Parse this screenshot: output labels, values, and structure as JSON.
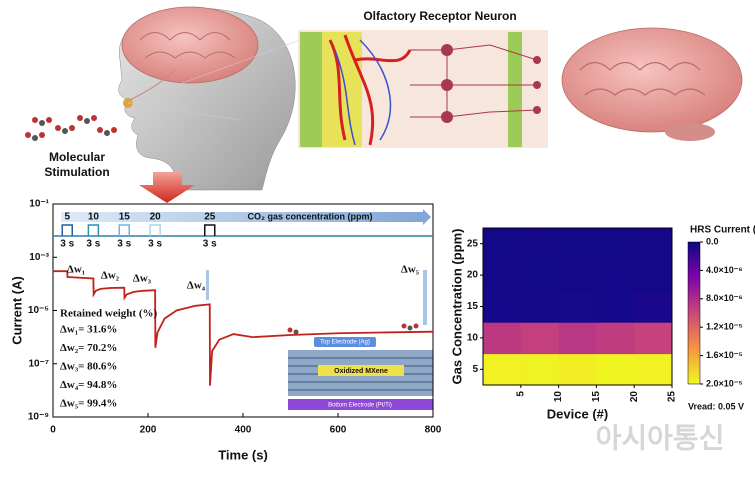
{
  "illustration": {
    "receptor_title": "Olfactory Receptor Neuron",
    "stimulation": [
      "Molecular",
      "Stimulation"
    ],
    "device": {
      "top": "Top Electrode (Ag)",
      "middle": "Oxidized MXene",
      "bottom": "Bottom Electrode (Pt/Ti)"
    },
    "watermark": "아시아통신"
  },
  "chart_data": [
    {
      "type": "line",
      "xlabel": "Time (s)",
      "ylabel": "Current (A)",
      "log_y": true,
      "xlim": [
        0,
        800
      ],
      "xticks": [
        0,
        200,
        400,
        600,
        800
      ],
      "ylim": [
        1e-09,
        0.1
      ],
      "yticks": [
        {
          "value": 1e-09,
          "label": "10⁻⁹"
        },
        {
          "value": 1e-07,
          "label": "10⁻⁷"
        },
        {
          "value": 1e-05,
          "label": "10⁻⁵"
        },
        {
          "value": 0.001,
          "label": "10⁻³"
        },
        {
          "value": 0.1,
          "label": "10⁻¹"
        }
      ],
      "series": [
        {
          "color": "#c0231b",
          "x": [
            0,
            30,
            30.5,
            85,
            85.5,
            90,
            100,
            120,
            150,
            150.5,
            155,
            170,
            190,
            215,
            215.5,
            220,
            235,
            260,
            300,
            330,
            330.5,
            335,
            350,
            380,
            420,
            500,
            600,
            700,
            800
          ],
          "values": [
            0.0003,
            0.0003,
            0.00018,
            0.00016,
            4e-05,
            5.5e-05,
            6.5e-05,
            7e-05,
            7.2e-05,
            3e-05,
            4e-05,
            5e-05,
            5.5e-05,
            5.8e-05,
            4e-07,
            1.5e-06,
            5e-06,
            1e-05,
            1.5e-05,
            1.7e-05,
            1.5e-08,
            3e-07,
            8e-07,
            1.3e-06,
            1e-06,
            1.2e-06,
            1.4e-06,
            1.5e-06,
            1.6e-06
          ]
        }
      ],
      "pulses": {
        "label": "CO₂ gas concentration (ppm)",
        "concentrations": [
          5,
          10,
          15,
          20,
          25
        ],
        "x": [
          30,
          85,
          150,
          215,
          330
        ],
        "duration_labels": [
          "3 s",
          "3 s",
          "3 s",
          "3 s",
          "3 s"
        ],
        "colors": [
          "#1f5fa8",
          "#2f8fb0",
          "#6bb6e0",
          "#a9d3ee",
          "#111111"
        ]
      },
      "annotations": {
        "drops": [
          "Δw₁",
          "Δw₂",
          "Δw₃",
          "Δw₄",
          "Δw₅"
        ],
        "retained_title": "Retained weight (%)",
        "retained": [
          "Δw₁= 31.6%",
          "Δw₂= 70.2%",
          "Δw₃= 80.6%",
          "Δw₄= 94.8%",
          "Δw₅= 99.4%"
        ]
      }
    },
    {
      "type": "heatmap",
      "xlabel": "Device (#)",
      "ylabel": "Gas Concentration (ppm)",
      "xlim": [
        0,
        25
      ],
      "xticks": [
        5,
        10,
        15,
        20,
        25
      ],
      "ylim": [
        2.5,
        27.5
      ],
      "yticks": [
        5,
        10,
        15,
        20,
        25
      ],
      "rows": [
        5,
        10,
        15,
        20,
        25
      ],
      "values": [
        [
          1.96e-05,
          1.97e-05,
          1.95e-05,
          1.98e-05,
          1.96e-05
        ],
        [
          9e-06,
          9.4e-06,
          8.8e-06,
          9.2e-06,
          9.6e-06
        ],
        [
          4e-07,
          3e-07,
          5e-07,
          4e-07,
          6e-07
        ],
        [
          3e-07,
          2e-07,
          3e-07,
          4e-07,
          3e-07
        ],
        [
          2e-07,
          3e-07,
          2e-07,
          2e-07,
          3e-07
        ]
      ],
      "colormap": "plasma",
      "colorbar": {
        "title": "HRS Current (A",
        "lim": [
          0,
          2e-05
        ],
        "ticks": [
          {
            "value": 0,
            "label": "0.0"
          },
          {
            "value": 4e-06,
            "label": "4.0×10⁻⁶"
          },
          {
            "value": 8e-06,
            "label": "8.0×10⁻⁶"
          },
          {
            "value": 1.2e-05,
            "label": "1.2×10⁻⁵"
          },
          {
            "value": 1.6e-05,
            "label": "1.6×10⁻⁵"
          },
          {
            "value": 2e-05,
            "label": "2.0×10⁻⁵"
          }
        ]
      },
      "note": "Vread: 0.05 V"
    }
  ]
}
